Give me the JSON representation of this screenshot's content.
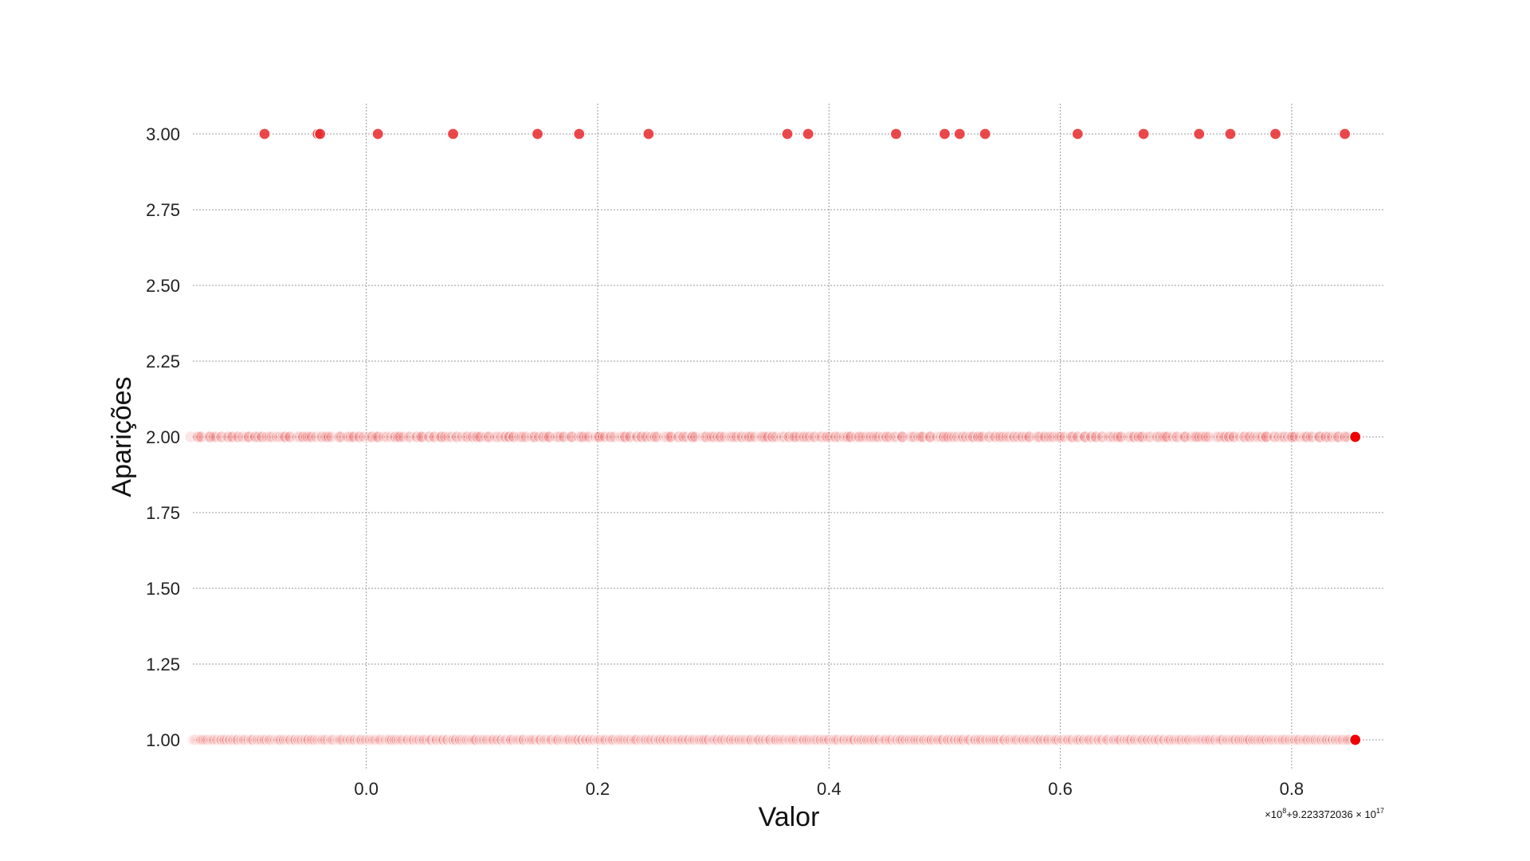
{
  "chart_data": {
    "type": "scatter",
    "title": "",
    "xlabel": "Valor",
    "ylabel": "Aparições",
    "x_offset_label": {
      "base": "×10",
      "base_exp": "8",
      "mid": "+9.223372036 × 10",
      "mid_exp": "17"
    },
    "xlim": [
      -0.15,
      0.88
    ],
    "ylim": [
      0.9,
      3.1
    ],
    "x_ticks": [
      {
        "value": 0.0,
        "label": "0.0"
      },
      {
        "value": 0.2,
        "label": "0.2"
      },
      {
        "value": 0.4,
        "label": "0.4"
      },
      {
        "value": 0.6,
        "label": "0.6"
      },
      {
        "value": 0.8,
        "label": "0.8"
      }
    ],
    "y_ticks": [
      {
        "value": 1.0,
        "label": "1.00"
      },
      {
        "value": 1.25,
        "label": "1.25"
      },
      {
        "value": 1.5,
        "label": "1.50"
      },
      {
        "value": 1.75,
        "label": "1.75"
      },
      {
        "value": 2.0,
        "label": "2.00"
      },
      {
        "value": 2.25,
        "label": "2.25"
      },
      {
        "value": 2.5,
        "label": "2.50"
      },
      {
        "value": 2.75,
        "label": "2.75"
      },
      {
        "value": 3.0,
        "label": "3.00"
      }
    ],
    "grid": true,
    "marker_color": "#e8282b",
    "faded_marker_color": "#ffd6d6",
    "series": [
      {
        "y": 3,
        "x": [
          -0.088,
          -0.042,
          -0.04,
          0.01,
          0.075,
          0.148,
          0.184,
          0.244,
          0.364,
          0.382,
          0.458,
          0.5,
          0.513,
          0.535,
          0.615,
          0.672,
          0.72,
          0.747,
          0.786,
          0.846
        ],
        "opacity": 0.85
      },
      {
        "y": 2,
        "x_dense_range": [
          -0.15,
          0.85
        ],
        "dense_count": 420,
        "dense_opacity": 0.12,
        "last_point_x": 0.855,
        "last_point_opacity": 1.0
      },
      {
        "y": 1,
        "x_dense_range": [
          -0.15,
          0.85
        ],
        "dense_count": 1200,
        "dense_opacity": 0.05,
        "last_point_x": 0.855,
        "last_point_opacity": 1.0
      }
    ]
  }
}
